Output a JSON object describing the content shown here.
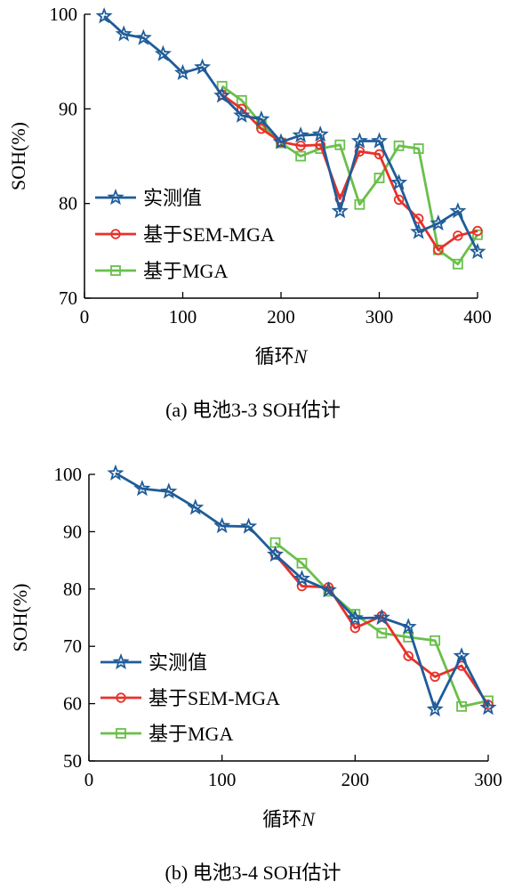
{
  "chart_data": [
    {
      "type": "line",
      "caption": "(a) 电池3-3 SOH估计",
      "xlabel_prefix": "循环",
      "xlabel_var": "N",
      "ylabel": "SOH(%)",
      "xlim": [
        0,
        400
      ],
      "ylim": [
        70,
        100
      ],
      "xticks": [
        0,
        100,
        200,
        300,
        400
      ],
      "yticks": [
        70,
        80,
        90,
        100
      ],
      "legend_position": "bottom-left",
      "series": [
        {
          "name": "实测值",
          "color": "#1f5c99",
          "marker": "star",
          "x": [
            20,
            40,
            60,
            80,
            100,
            120,
            140,
            160,
            180,
            200,
            220,
            240,
            260,
            280,
            300,
            320,
            340,
            360,
            380,
            400
          ],
          "y": [
            99.8,
            97.9,
            97.5,
            95.8,
            93.8,
            94.4,
            91.4,
            89.3,
            88.9,
            86.5,
            87.2,
            87.3,
            79.2,
            86.6,
            86.6,
            82.2,
            77.0,
            77.9,
            79.2,
            74.9
          ]
        },
        {
          "name": "基于SEM-MGA",
          "color": "#e8312a",
          "marker": "circle",
          "x": [
            140,
            160,
            180,
            200,
            220,
            240,
            260,
            280,
            300,
            320,
            340,
            360,
            380,
            400
          ],
          "y": [
            91.5,
            90.0,
            87.9,
            86.5,
            86.1,
            86.2,
            80.5,
            85.5,
            85.2,
            80.4,
            78.4,
            75.1,
            76.6,
            77.1
          ]
        },
        {
          "name": "基于MGA",
          "color": "#6abf4b",
          "marker": "square",
          "x": [
            140,
            160,
            180,
            200,
            220,
            240,
            260,
            280,
            300,
            320,
            340,
            360,
            380,
            400
          ],
          "y": [
            92.4,
            90.9,
            88.4,
            86.4,
            85.0,
            85.8,
            86.2,
            79.9,
            82.7,
            86.1,
            85.8,
            75.1,
            73.6,
            76.7
          ]
        }
      ]
    },
    {
      "type": "line",
      "caption": "(b) 电池3-4 SOH估计",
      "xlabel_prefix": "循环",
      "xlabel_var": "N",
      "ylabel": "SOH(%)",
      "xlim": [
        0,
        300
      ],
      "ylim": [
        50,
        100
      ],
      "xticks": [
        0,
        100,
        200,
        300
      ],
      "yticks": [
        50,
        60,
        70,
        80,
        90,
        100
      ],
      "legend_position": "bottom-left",
      "series": [
        {
          "name": "实测值",
          "color": "#1f5c99",
          "marker": "star",
          "x": [
            20,
            40,
            60,
            80,
            100,
            120,
            140,
            160,
            180,
            200,
            220,
            240,
            260,
            280,
            300
          ],
          "y": [
            100.2,
            97.5,
            97.0,
            94.2,
            91.0,
            90.9,
            86.0,
            81.8,
            79.8,
            74.9,
            75.0,
            73.4,
            59.0,
            68.3,
            59.3
          ]
        },
        {
          "name": "基于SEM-MGA",
          "color": "#e8312a",
          "marker": "circle",
          "x": [
            140,
            160,
            180,
            200,
            220,
            240,
            260,
            280,
            300
          ],
          "y": [
            86.0,
            80.5,
            80.3,
            73.2,
            75.3,
            68.3,
            64.7,
            66.6,
            59.8
          ]
        },
        {
          "name": "基于MGA",
          "color": "#6abf4b",
          "marker": "square",
          "x": [
            140,
            160,
            180,
            200,
            220,
            240,
            260,
            280,
            300
          ],
          "y": [
            88.1,
            84.5,
            79.6,
            75.6,
            72.3,
            71.6,
            71.0,
            59.5,
            60.5
          ]
        }
      ]
    }
  ]
}
